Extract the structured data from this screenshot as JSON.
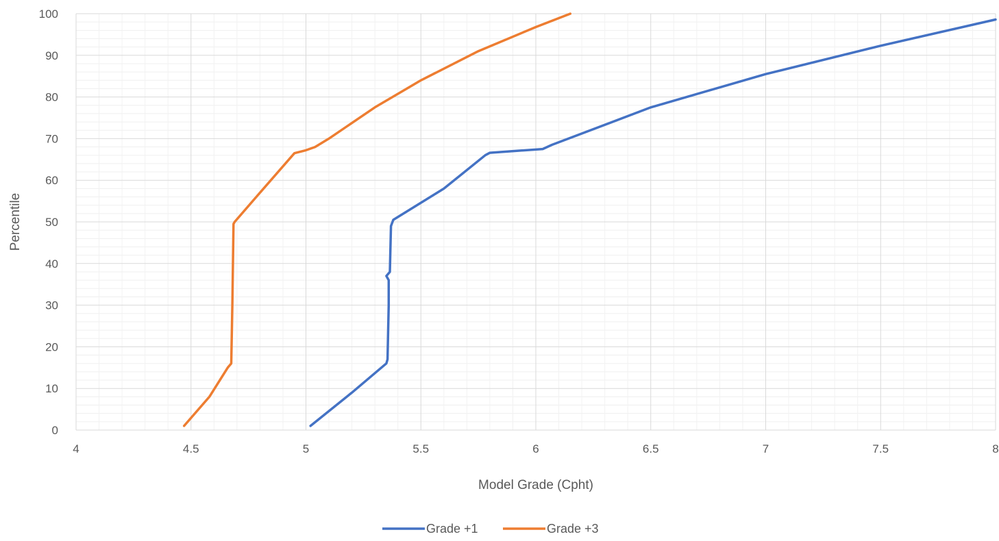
{
  "chart_data": {
    "type": "line",
    "title": "",
    "xlabel": "Model Grade (Cpht)",
    "ylabel": "Percentile",
    "xlim": [
      4,
      8
    ],
    "ylim": [
      0,
      100
    ],
    "x_ticks": [
      "4",
      "4.5",
      "5",
      "5.5",
      "6",
      "6.5",
      "7",
      "7.5",
      "8"
    ],
    "y_ticks": [
      "0",
      "10",
      "20",
      "30",
      "40",
      "50",
      "60",
      "70",
      "80",
      "90",
      "100"
    ],
    "grid": true,
    "legend_position": "bottom",
    "series": [
      {
        "name": "Grade +1",
        "color": "#4472C4",
        "points": [
          [
            5.02,
            1
          ],
          [
            5.2,
            9
          ],
          [
            5.35,
            16
          ],
          [
            5.355,
            17
          ],
          [
            5.36,
            30
          ],
          [
            5.36,
            36
          ],
          [
            5.35,
            37
          ],
          [
            5.365,
            38
          ],
          [
            5.37,
            49
          ],
          [
            5.38,
            50.5
          ],
          [
            5.6,
            58
          ],
          [
            5.78,
            66
          ],
          [
            5.8,
            66.6
          ],
          [
            6.03,
            67.5
          ],
          [
            6.07,
            68.5
          ],
          [
            6.5,
            77.5
          ],
          [
            7.0,
            85.5
          ],
          [
            7.5,
            92.3
          ],
          [
            8.0,
            98.6
          ]
        ]
      },
      {
        "name": "Grade +3",
        "color": "#ED7D31",
        "points": [
          [
            4.47,
            1
          ],
          [
            4.58,
            8
          ],
          [
            4.66,
            15
          ],
          [
            4.675,
            16
          ],
          [
            4.68,
            30
          ],
          [
            4.685,
            49.5
          ],
          [
            4.69,
            50
          ],
          [
            4.8,
            57
          ],
          [
            4.95,
            66.5
          ],
          [
            5.0,
            67.2
          ],
          [
            5.04,
            68
          ],
          [
            5.1,
            70
          ],
          [
            5.3,
            77.5
          ],
          [
            5.5,
            84
          ],
          [
            5.75,
            91
          ],
          [
            6.0,
            96.8
          ],
          [
            6.15,
            100
          ]
        ]
      }
    ]
  }
}
